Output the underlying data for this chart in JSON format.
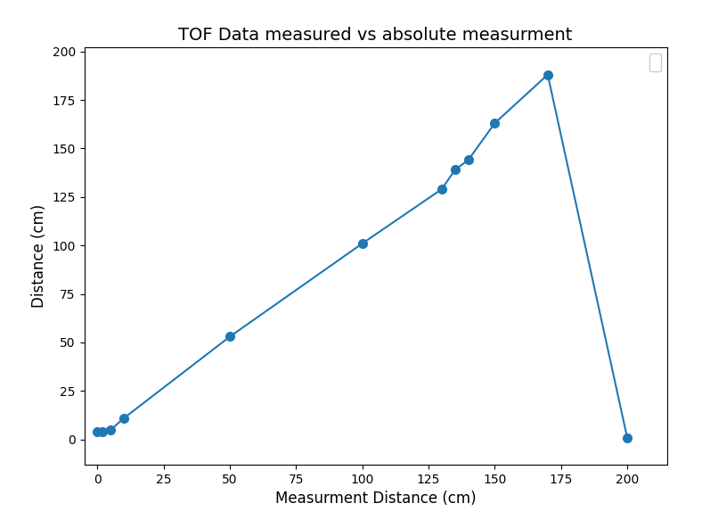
{
  "x": [
    0,
    2,
    5,
    10,
    50,
    100,
    130,
    135,
    140,
    150,
    170,
    200
  ],
  "y": [
    4,
    4,
    5,
    11,
    53,
    101,
    129,
    139,
    144,
    163,
    188,
    1
  ],
  "title": "TOF Data measured vs absolute measurment",
  "xlabel": "Measurment Distance (cm)",
  "ylabel": "Distance (cm)",
  "line_color": "#1f77b4",
  "marker": "o",
  "markersize": 7,
  "linewidth": 1.5,
  "figsize": [
    7.88,
    5.92
  ],
  "dpi": 100,
  "xlim": [
    -5,
    215
  ],
  "ylim": [
    -13,
    202
  ],
  "title_fontsize": 14,
  "label_fontsize": 12
}
